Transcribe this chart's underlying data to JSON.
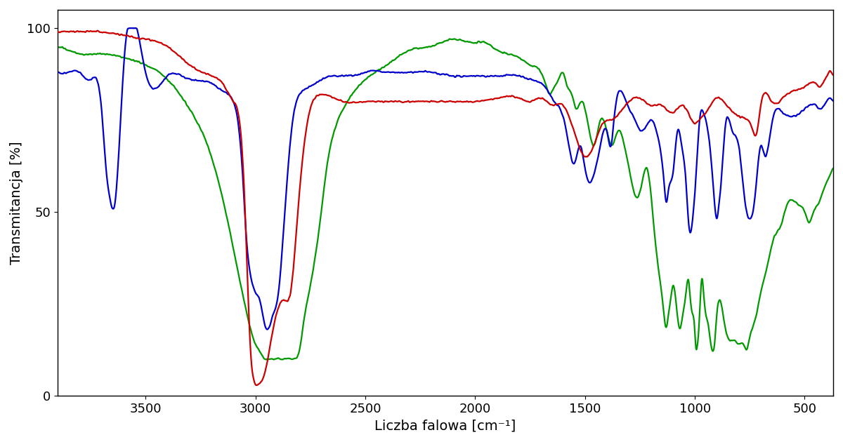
{
  "title": "",
  "xlabel": "Liczba falowa [cm⁻¹]",
  "ylabel": "Transmitancja [%]",
  "xlim": [
    3900,
    370
  ],
  "ylim": [
    0,
    105
  ],
  "yticks": [
    0,
    50,
    100
  ],
  "xticks": [
    3500,
    3000,
    2500,
    2000,
    1500,
    1000,
    500
  ],
  "colors": {
    "red": "#cc0000",
    "blue": "#0000cc",
    "green": "#009900"
  },
  "linewidth": 1.6,
  "background": "#ffffff",
  "xlabel_fontsize": 14,
  "ylabel_fontsize": 14,
  "tick_fontsize": 13
}
